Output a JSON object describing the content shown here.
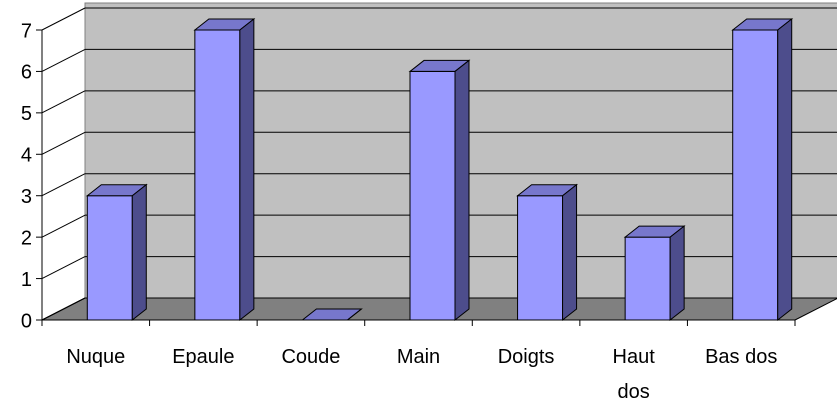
{
  "chart_data": {
    "type": "bar3d",
    "categories": [
      "Nuque",
      "Epaule",
      "Coude",
      "Main",
      "Doigts",
      "Haut dos",
      "Bas dos"
    ],
    "values": [
      3,
      7,
      0,
      6,
      3,
      2,
      7
    ],
    "color": "#9999ff",
    "ylim": [
      0,
      7
    ],
    "yticks": [
      0,
      1,
      2,
      3,
      4,
      5,
      6,
      7
    ],
    "grid": true
  }
}
